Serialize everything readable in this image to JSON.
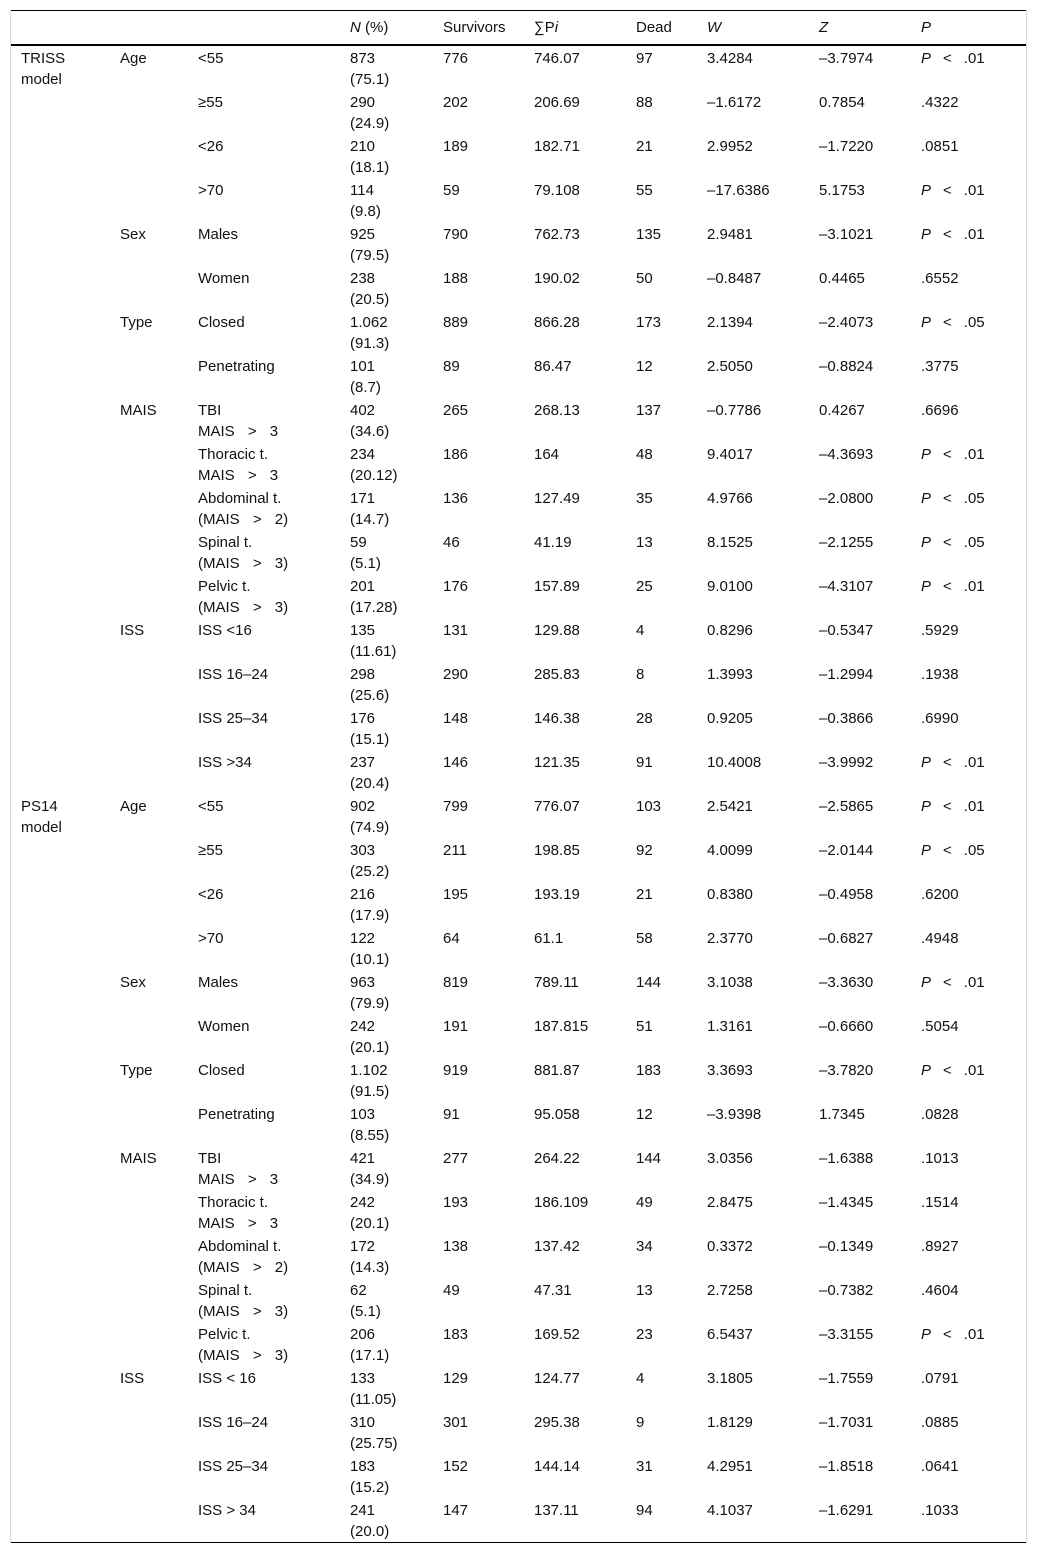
{
  "header": [
    [
      "N",
      " (%)"
    ],
    [
      "Survivors"
    ],
    [
      "∑P",
      "i"
    ],
    [
      "Dead"
    ],
    [
      "W"
    ],
    [
      "Z"
    ],
    [
      "P"
    ]
  ],
  "header_italic": [
    [
      true,
      false
    ],
    [
      false
    ],
    [
      false,
      true
    ],
    [
      false
    ],
    [
      true
    ],
    [
      true
    ],
    [
      true
    ]
  ],
  "sections": [
    {
      "model": "TRISS model",
      "groups": [
        {
          "name": "Age",
          "rows": [
            [
              "<55",
              "873",
              "(75.1)",
              "776",
              "746.07",
              "97",
              "3.4284",
              "–3.7974",
              [
                "P",
                "<",
                ".01"
              ]
            ],
            [
              "≥55",
              "290",
              "(24.9)",
              "202",
              "206.69",
              "88",
              "–1.6172",
              "0.7854",
              ".4322"
            ],
            [
              "<26",
              "210",
              "(18.1)",
              "189",
              "182.71",
              "21",
              "2.9952",
              "–1.7220",
              ".0851"
            ],
            [
              ">70",
              "114",
              "(9.8)",
              "59",
              "79.108",
              "55",
              "–17.6386",
              "5.1753",
              [
                "P",
                "<",
                ".01"
              ]
            ]
          ]
        },
        {
          "name": "Sex",
          "rows": [
            [
              "Males",
              "925",
              "(79.5)",
              "790",
              "762.73",
              "135",
              "2.9481",
              "–3.1021",
              [
                "P",
                "<",
                ".01"
              ]
            ],
            [
              "Women",
              "238",
              "(20.5)",
              "188",
              "190.02",
              "50",
              "–0.8487",
              "0.4465",
              ".6552"
            ]
          ]
        },
        {
          "name": "Type",
          "rows": [
            [
              "Closed",
              "1.062",
              "(91.3)",
              "889",
              "866.28",
              "173",
              "2.1394",
              "–2.4073",
              [
                "P",
                "<",
                ".05"
              ]
            ],
            [
              "Penetrating",
              "101",
              "(8.7)",
              "89",
              "86.47",
              "12",
              "2.5050",
              "–0.8824",
              ".3775"
            ]
          ]
        },
        {
          "name": "MAIS",
          "rows": [
            [
              [
                "TBI",
                "MAIS > 3"
              ],
              "402",
              "(34.6)",
              "265",
              "268.13",
              "137",
              "–0.7786",
              "0.4267",
              ".6696"
            ],
            [
              [
                "Thoracic t.",
                "MAIS > 3"
              ],
              "234",
              "(20.12)",
              "186",
              "164",
              "48",
              "9.4017",
              "–4.3693",
              [
                "P",
                "<",
                ".01"
              ]
            ],
            [
              [
                "Abdominal t.",
                "(MAIS > 2)"
              ],
              "171",
              "(14.7)",
              "136",
              "127.49",
              "35",
              "4.9766",
              "–2.0800",
              [
                "P",
                "<",
                ".05"
              ]
            ],
            [
              [
                "Spinal t.",
                "(MAIS > 3)"
              ],
              "59",
              "(5.1)",
              "46",
              "41.19",
              "13",
              "8.1525",
              "–2.1255",
              [
                "P",
                "<",
                ".05"
              ]
            ],
            [
              [
                "Pelvic t.",
                "(MAIS > 3)"
              ],
              "201",
              "(17.28)",
              "176",
              "157.89",
              "25",
              "9.0100",
              "–4.3107",
              [
                "P",
                "<",
                ".01"
              ]
            ]
          ]
        },
        {
          "name": "ISS",
          "rows": [
            [
              "ISS <16",
              "135",
              "(11.61)",
              "131",
              "129.88",
              "4",
              "0.8296",
              "–0.5347",
              ".5929"
            ],
            [
              "ISS 16–24",
              "298",
              "(25.6)",
              "290",
              "285.83",
              "8",
              "1.3993",
              "–1.2994",
              ".1938"
            ],
            [
              "ISS 25–34",
              "176",
              "(15.1)",
              "148",
              "146.38",
              "28",
              "0.9205",
              "–0.3866",
              ".6990"
            ],
            [
              "ISS >34",
              "237",
              "(20.4)",
              "146",
              "121.35",
              "91",
              "10.4008",
              "–3.9992",
              [
                "P",
                "<",
                ".01"
              ]
            ]
          ]
        }
      ]
    },
    {
      "model": "PS14 model",
      "groups": [
        {
          "name": "Age",
          "rows": [
            [
              "<55",
              "902",
              "(74.9)",
              "799",
              "776.07",
              "103",
              "2.5421",
              "–2.5865",
              [
                "P",
                "<",
                ".01"
              ]
            ],
            [
              "≥55",
              "303",
              "(25.2)",
              "211",
              "198.85",
              "92",
              "4.0099",
              "–2.0144",
              [
                "P",
                "<",
                ".05"
              ]
            ],
            [
              "<26",
              "216",
              "(17.9)",
              "195",
              "193.19",
              "21",
              "0.8380",
              "–0.4958",
              ".6200"
            ],
            [
              ">70",
              "122",
              "(10.1)",
              "64",
              "61.1",
              "58",
              "2.3770",
              "–0.6827",
              ".4948"
            ]
          ]
        },
        {
          "name": "Sex",
          "rows": [
            [
              "Males",
              "963",
              "(79.9)",
              "819",
              "789.11",
              "144",
              "3.1038",
              "–3.3630",
              [
                "P",
                "<",
                ".01"
              ]
            ],
            [
              "Women",
              "242",
              "(20.1)",
              "191",
              "187.815",
              "51",
              "1.3161",
              "–0.6660",
              ".5054"
            ]
          ]
        },
        {
          "name": "Type",
          "rows": [
            [
              "Closed",
              "1.102",
              "(91.5)",
              "919",
              "881.87",
              "183",
              "3.3693",
              "–3.7820",
              [
                "P",
                "<",
                ".01"
              ]
            ],
            [
              "Penetrating",
              "103",
              "(8.55)",
              "91",
              "95.058",
              "12",
              "–3.9398",
              "1.7345",
              ".0828"
            ]
          ]
        },
        {
          "name": "MAIS",
          "rows": [
            [
              [
                "TBI",
                "MAIS > 3"
              ],
              "421",
              "(34.9)",
              "277",
              "264.22",
              "144",
              "3.0356",
              "–1.6388",
              ".1013"
            ],
            [
              [
                "Thoracic t.",
                "MAIS > 3"
              ],
              "242",
              "(20.1)",
              "193",
              "186.109",
              "49",
              "2.8475",
              "–1.4345",
              ".1514"
            ],
            [
              [
                "Abdominal t.",
                "(MAIS > 2)"
              ],
              "172",
              "(14.3)",
              "138",
              "137.42",
              "34",
              "0.3372",
              "–0.1349",
              ".8927"
            ],
            [
              [
                "Spinal t.",
                "(MAIS > 3)"
              ],
              "62",
              "(5.1)",
              "49",
              "47.31",
              "13",
              "2.7258",
              "–0.7382",
              ".4604"
            ],
            [
              [
                "Pelvic t.",
                "(MAIS > 3)"
              ],
              "206",
              "(17.1)",
              "183",
              "169.52",
              "23",
              "6.5437",
              "–3.3155",
              [
                "P",
                "<",
                ".01"
              ]
            ]
          ]
        },
        {
          "name": "ISS",
          "rows": [
            [
              "ISS < 16",
              "133",
              "(11.05)",
              "129",
              "124.77",
              "4",
              "3.1805",
              "–1.7559",
              ".0791"
            ],
            [
              "ISS 16–24",
              "310",
              "(25.75)",
              "301",
              "295.38",
              "9",
              "1.8129",
              "–1.7031",
              ".0885"
            ],
            [
              "ISS 25–34",
              "183",
              "(15.2)",
              "152",
              "144.14",
              "31",
              "4.2951",
              "–1.8518",
              ".0641"
            ],
            [
              "ISS > 34",
              "241",
              "(20.0)",
              "147",
              "137.11",
              "94",
              "4.1037",
              "–1.6291",
              ".1033"
            ]
          ]
        }
      ]
    }
  ]
}
